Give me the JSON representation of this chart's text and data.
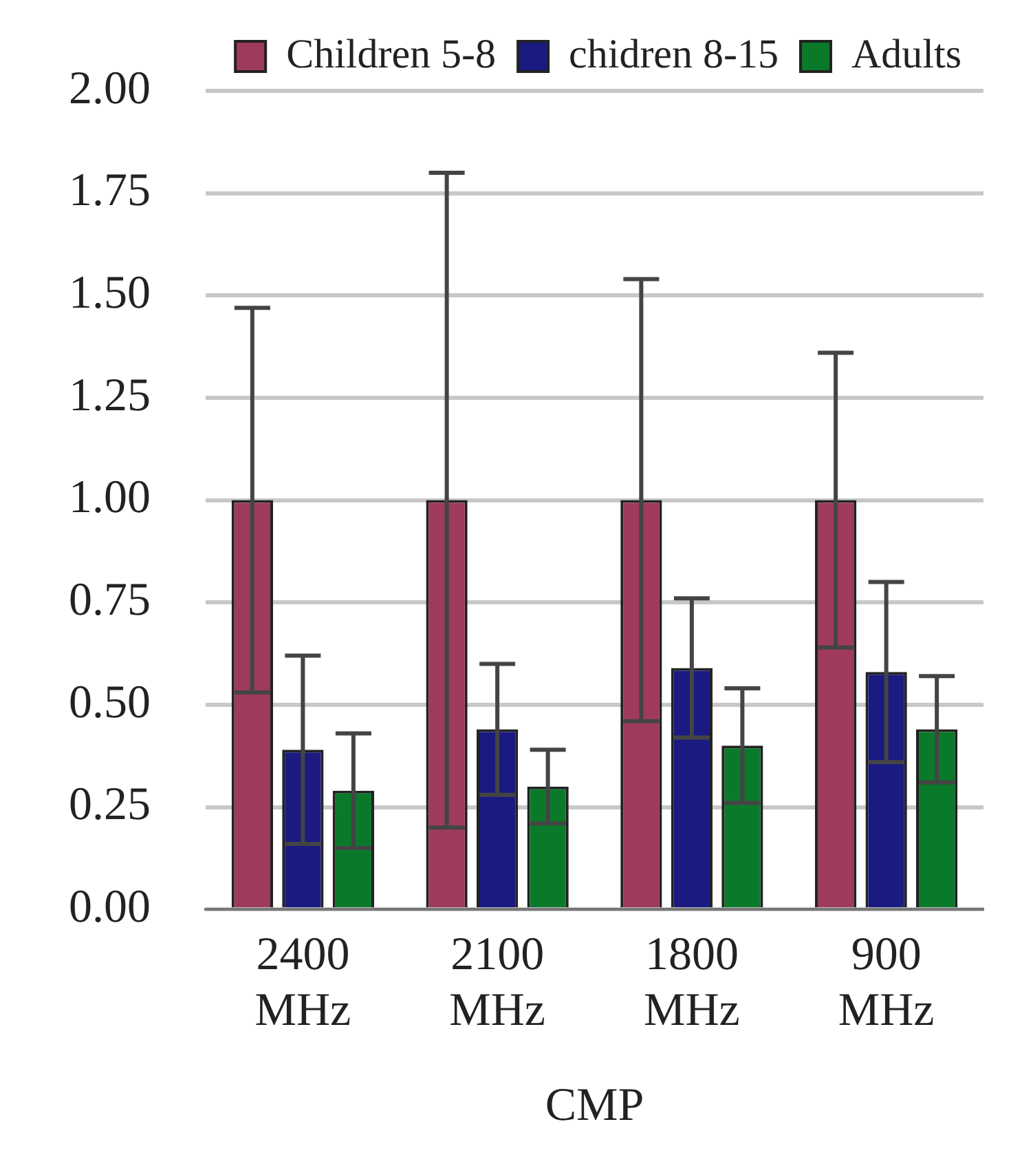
{
  "chart_data": {
    "type": "bar",
    "xlabel": "CMP",
    "categories": [
      "2400 MHz",
      "2100 MHz",
      "1800 MHz",
      "900 MHz"
    ],
    "series": [
      {
        "name": "Children 5-8",
        "color": "#9e3a5e",
        "values": [
          1.0,
          1.0,
          1.0,
          1.0
        ],
        "errors": [
          0.47,
          0.8,
          0.54,
          0.36
        ]
      },
      {
        "name": "chidren 8-15",
        "color": "#1a1a80",
        "values": [
          0.39,
          0.44,
          0.59,
          0.58
        ],
        "errors": [
          0.23,
          0.16,
          0.17,
          0.22
        ]
      },
      {
        "name": "Adults",
        "color": "#0a7a2a",
        "values": [
          0.29,
          0.3,
          0.4,
          0.44
        ],
        "errors": [
          0.14,
          0.09,
          0.14,
          0.13
        ]
      }
    ],
    "ylim": [
      0,
      2
    ],
    "yticks": [
      {
        "value": 0,
        "label": "0.00"
      },
      {
        "value": 0.25,
        "label": "0.25"
      },
      {
        "value": 0.5,
        "label": "0.50"
      },
      {
        "value": 0.75,
        "label": "0.75"
      },
      {
        "value": 1,
        "label": "1.00"
      },
      {
        "value": 1.25,
        "label": "1.25"
      },
      {
        "value": 1.5,
        "label": "1.50"
      },
      {
        "value": 1.75,
        "label": "1.75"
      },
      {
        "value": 2,
        "label": "2.00"
      }
    ],
    "grid": "y",
    "legend": "top right"
  }
}
